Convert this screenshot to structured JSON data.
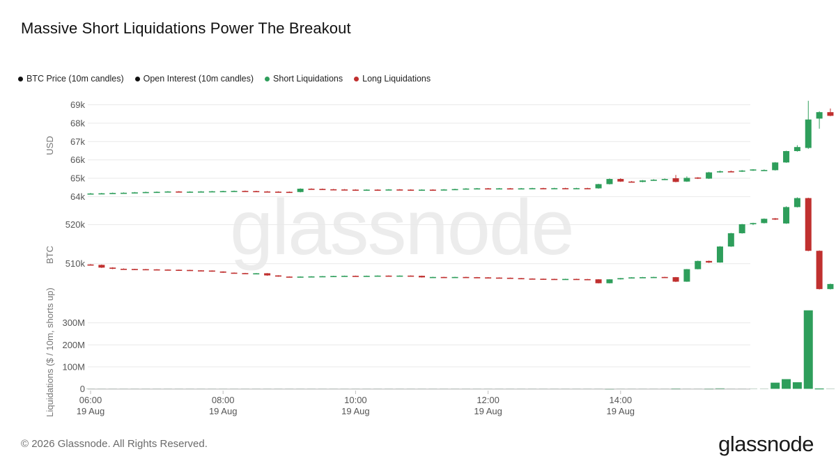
{
  "title": "Massive Short Liquidations Power The Breakout",
  "legend": [
    {
      "label": "BTC Price (10m candles)",
      "color": "#111111"
    },
    {
      "label": "Open Interest (10m candles)",
      "color": "#111111"
    },
    {
      "label": "Short Liquidations",
      "color": "#2e9e5b"
    },
    {
      "label": "Long Liquidations",
      "color": "#c0302f"
    }
  ],
  "footer": "© 2026 Glassnode. All Rights Reserved.",
  "brand": "glassnode",
  "watermark": "glassnode",
  "colors": {
    "up": "#2e9e5b",
    "down": "#c0302f",
    "grid": "#e9e9e9"
  },
  "chart_data": {
    "type": "candlestick",
    "x_axis": {
      "start": "06:00",
      "step_minutes": 10,
      "ticks": [
        {
          "time": "06:00",
          "date": "19 Aug"
        },
        {
          "time": "08:00",
          "date": "19 Aug"
        },
        {
          "time": "10:00",
          "date": "19 Aug"
        },
        {
          "time": "12:00",
          "date": "19 Aug"
        },
        {
          "time": "14:00",
          "date": "19 Aug"
        }
      ]
    },
    "panels": [
      {
        "id": "price",
        "ylabel": "USD",
        "ylim": [
          63900,
          69400
        ],
        "yticks": [
          {
            "v": 64000,
            "label": "64k"
          },
          {
            "v": 65000,
            "label": "65k"
          },
          {
            "v": 66000,
            "label": "66k"
          },
          {
            "v": 67000,
            "label": "67k"
          },
          {
            "v": 68000,
            "label": "68k"
          },
          {
            "v": 69000,
            "label": "69k"
          }
        ],
        "candles": [
          [
            64150,
            64170,
            64200,
            64120
          ],
          [
            64170,
            64180,
            64200,
            64150
          ],
          [
            64180,
            64200,
            64220,
            64160
          ],
          [
            64200,
            64210,
            64230,
            64180
          ],
          [
            64210,
            64230,
            64250,
            64190
          ],
          [
            64230,
            64250,
            64270,
            64210
          ],
          [
            64250,
            64260,
            64280,
            64230
          ],
          [
            64260,
            64280,
            64300,
            64240
          ],
          [
            64280,
            64260,
            64300,
            64240
          ],
          [
            64260,
            64270,
            64290,
            64240
          ],
          [
            64270,
            64280,
            64300,
            64250
          ],
          [
            64280,
            64290,
            64310,
            64260
          ],
          [
            64290,
            64300,
            64320,
            64270
          ],
          [
            64300,
            64310,
            64330,
            64280
          ],
          [
            64310,
            64300,
            64330,
            64280
          ],
          [
            64300,
            64280,
            64320,
            64260
          ],
          [
            64280,
            64270,
            64300,
            64250
          ],
          [
            64270,
            64260,
            64290,
            64240
          ],
          [
            64260,
            64250,
            64280,
            64230
          ],
          [
            64250,
            64430,
            64450,
            64230
          ],
          [
            64430,
            64420,
            64450,
            64400
          ],
          [
            64420,
            64400,
            64440,
            64380
          ],
          [
            64400,
            64390,
            64420,
            64370
          ],
          [
            64390,
            64380,
            64410,
            64360
          ],
          [
            64380,
            64370,
            64400,
            64350
          ],
          [
            64370,
            64380,
            64400,
            64350
          ],
          [
            64380,
            64370,
            64400,
            64350
          ],
          [
            64370,
            64390,
            64410,
            64350
          ],
          [
            64390,
            64380,
            64410,
            64360
          ],
          [
            64380,
            64370,
            64400,
            64350
          ],
          [
            64370,
            64380,
            64400,
            64350
          ],
          [
            64380,
            64370,
            64400,
            64350
          ],
          [
            64370,
            64390,
            64410,
            64350
          ],
          [
            64390,
            64410,
            64430,
            64370
          ],
          [
            64410,
            64440,
            64460,
            64390
          ],
          [
            64440,
            64450,
            64470,
            64420
          ],
          [
            64450,
            64440,
            64470,
            64420
          ],
          [
            64440,
            64450,
            64470,
            64420
          ],
          [
            64450,
            64440,
            64470,
            64420
          ],
          [
            64440,
            64450,
            64470,
            64420
          ],
          [
            64450,
            64460,
            64480,
            64430
          ],
          [
            64460,
            64450,
            64480,
            64430
          ],
          [
            64450,
            64460,
            64480,
            64430
          ],
          [
            64460,
            64450,
            64480,
            64430
          ],
          [
            64450,
            64460,
            64480,
            64430
          ],
          [
            64460,
            64450,
            64480,
            64430
          ],
          [
            64450,
            64680,
            64700,
            64430
          ],
          [
            64680,
            64960,
            64990,
            64660
          ],
          [
            64960,
            64820,
            65000,
            64800
          ],
          [
            64820,
            64800,
            64850,
            64780
          ],
          [
            64800,
            64880,
            64900,
            64780
          ],
          [
            64880,
            64920,
            64950,
            64860
          ],
          [
            64920,
            64960,
            64990,
            64900
          ],
          [
            65000,
            64800,
            65180,
            64780
          ],
          [
            64820,
            65020,
            65100,
            64800
          ],
          [
            65040,
            64980,
            65060,
            64960
          ],
          [
            64980,
            65320,
            65350,
            64960
          ],
          [
            65320,
            65380,
            65420,
            65300
          ],
          [
            65380,
            65360,
            65420,
            65340
          ],
          [
            65360,
            65420,
            65450,
            65340
          ],
          [
            65420,
            65480,
            65500,
            65400
          ],
          [
            65450,
            65450,
            65480,
            65420
          ],
          [
            65440,
            65860,
            65880,
            65420
          ],
          [
            65860,
            66480,
            66500,
            65840
          ],
          [
            66480,
            66700,
            66800,
            66450
          ],
          [
            66650,
            68200,
            69220,
            66600
          ],
          [
            68250,
            68600,
            68650,
            67700
          ],
          [
            68600,
            68400,
            68800,
            68380
          ],
          [
            68380,
            68500,
            68520,
            68200
          ]
        ]
      },
      {
        "id": "open_interest",
        "ylabel": "BTC",
        "ylim": [
          500500,
          523500
        ],
        "yticks": [
          {
            "v": 510000,
            "label": "510k"
          },
          {
            "v": 520000,
            "label": "520k"
          }
        ],
        "candles": [
          [
            509800,
            509700,
            509900,
            509600
          ],
          [
            509700,
            509000,
            509800,
            508900
          ],
          [
            509000,
            508700,
            509100,
            508600
          ],
          [
            508700,
            508650,
            508800,
            508600
          ],
          [
            508650,
            508600,
            508700,
            508550
          ],
          [
            508600,
            508550,
            508650,
            508500
          ],
          [
            508550,
            508500,
            508600,
            508450
          ],
          [
            508500,
            508450,
            508550,
            508400
          ],
          [
            508450,
            508400,
            508500,
            508350
          ],
          [
            508400,
            508300,
            508450,
            508250
          ],
          [
            508300,
            508250,
            508350,
            508200
          ],
          [
            508250,
            508000,
            508300,
            507950
          ],
          [
            508000,
            507700,
            508050,
            507650
          ],
          [
            507700,
            507600,
            507750,
            507550
          ],
          [
            507600,
            507500,
            507650,
            507450
          ],
          [
            507500,
            507550,
            507600,
            507450
          ],
          [
            507550,
            507000,
            507600,
            506900
          ],
          [
            507000,
            506700,
            507050,
            506650
          ],
          [
            506700,
            506650,
            506750,
            506600
          ],
          [
            506650,
            506700,
            506750,
            506600
          ],
          [
            506700,
            506750,
            506800,
            506650
          ],
          [
            506750,
            506800,
            506850,
            506700
          ],
          [
            506800,
            506850,
            506900,
            506750
          ],
          [
            506850,
            506900,
            506950,
            506800
          ],
          [
            506900,
            506850,
            506950,
            506800
          ],
          [
            506850,
            506900,
            506950,
            506800
          ],
          [
            506900,
            506950,
            507000,
            506850
          ],
          [
            506950,
            506900,
            507000,
            506850
          ],
          [
            506900,
            506950,
            507000,
            506850
          ],
          [
            506950,
            506900,
            507000,
            506850
          ],
          [
            506900,
            506500,
            506950,
            506450
          ],
          [
            506500,
            506600,
            506650,
            506450
          ],
          [
            506600,
            506550,
            506650,
            506500
          ],
          [
            506550,
            506600,
            506650,
            506500
          ],
          [
            506600,
            506550,
            506650,
            506500
          ],
          [
            506550,
            506500,
            506600,
            506450
          ],
          [
            506500,
            506450,
            506550,
            506400
          ],
          [
            506450,
            506400,
            506500,
            506350
          ],
          [
            506400,
            506300,
            506450,
            506250
          ],
          [
            506300,
            506200,
            506350,
            506150
          ],
          [
            506200,
            506150,
            506250,
            506100
          ],
          [
            506150,
            506100,
            506200,
            506050
          ],
          [
            506100,
            506050,
            506150,
            506000
          ],
          [
            506050,
            506100,
            506150,
            506000
          ],
          [
            506100,
            506050,
            506150,
            506000
          ],
          [
            506050,
            506000,
            506100,
            505950
          ],
          [
            506000,
            505000,
            506050,
            504950
          ],
          [
            505000,
            506000,
            506050,
            504950
          ],
          [
            506000,
            506300,
            506350,
            505950
          ],
          [
            506300,
            506500,
            506550,
            506250
          ],
          [
            506500,
            506550,
            506600,
            506450
          ],
          [
            506550,
            506600,
            506650,
            506500
          ],
          [
            506600,
            506550,
            506650,
            506500
          ],
          [
            506550,
            505400,
            506600,
            505300
          ],
          [
            505400,
            508600,
            508650,
            505350
          ],
          [
            508600,
            510700,
            510800,
            508550
          ],
          [
            510700,
            510300,
            510800,
            510200
          ],
          [
            510300,
            514400,
            514500,
            510250
          ],
          [
            514400,
            517800,
            517900,
            514300
          ],
          [
            517800,
            520100,
            520200,
            517700
          ],
          [
            520100,
            520400,
            520500,
            519900
          ],
          [
            520400,
            521500,
            521600,
            520300
          ],
          [
            521600,
            521300,
            521700,
            521200
          ],
          [
            520300,
            524500,
            524700,
            520200
          ],
          [
            524500,
            526800,
            527000,
            524400
          ],
          [
            526800,
            513300,
            526900,
            513200
          ],
          [
            513300,
            503500,
            513400,
            503400
          ],
          [
            503500,
            504800,
            504900,
            503400
          ],
          [
            504800,
            507100,
            507200,
            504700
          ]
        ]
      },
      {
        "id": "liquidations",
        "ylabel": "Liquidations ($ / 10m, shorts up)",
        "ylim": [
          -5000000,
          375000000
        ],
        "yticks": [
          {
            "v": 0,
            "label": "0"
          },
          {
            "v": 100000000,
            "label": "100M"
          },
          {
            "v": 200000000,
            "label": "200M"
          },
          {
            "v": 300000000,
            "label": "300M"
          }
        ],
        "short": [
          0,
          0,
          0,
          0,
          0,
          0,
          0,
          0,
          0,
          0,
          0,
          0,
          0,
          0,
          0,
          0,
          0,
          0,
          0,
          0,
          0,
          0,
          0,
          0,
          0,
          0,
          0,
          0,
          0,
          0,
          0,
          0,
          0,
          0,
          0,
          0,
          0,
          0,
          0,
          0,
          0,
          0,
          0,
          0,
          0,
          0,
          0,
          300000,
          0,
          0,
          0,
          0,
          0,
          1500000,
          0,
          0,
          1000000,
          2000000,
          0,
          0,
          0,
          0,
          28000000,
          44000000,
          30000000,
          357000000,
          1500000,
          0,
          0
        ],
        "long": [
          0,
          0,
          0,
          0,
          0,
          0,
          0,
          0,
          0,
          0,
          0,
          0,
          0,
          0,
          0,
          0,
          0,
          0,
          0,
          0,
          0,
          0,
          0,
          0,
          0,
          0,
          0,
          0,
          0,
          0,
          0,
          0,
          0,
          0,
          0,
          0,
          0,
          0,
          0,
          0,
          0,
          0,
          0,
          0,
          0,
          0,
          0,
          0,
          0,
          0,
          0,
          0,
          0,
          0,
          0,
          0,
          0,
          0,
          0,
          0,
          0,
          0,
          0,
          0,
          0,
          0,
          0,
          0,
          0
        ]
      }
    ]
  }
}
